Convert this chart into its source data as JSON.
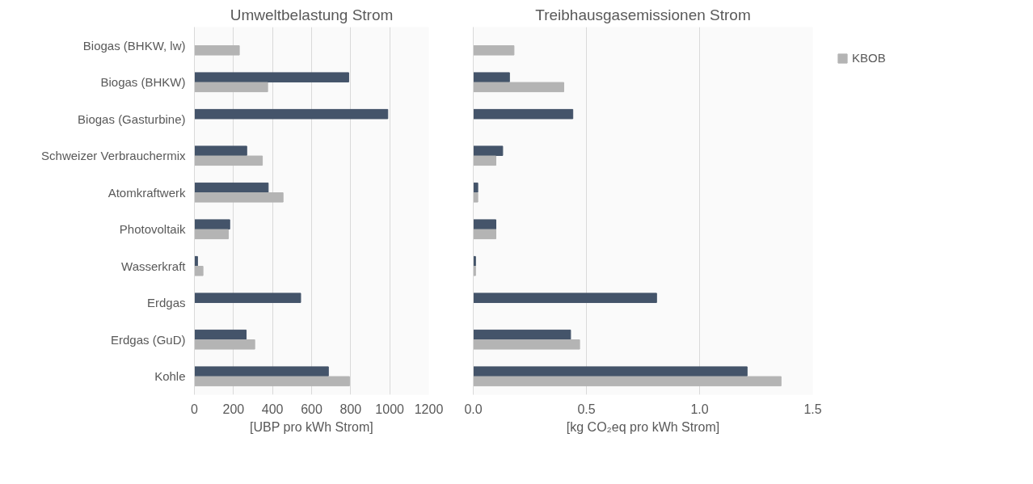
{
  "chart_data": [
    {
      "type": "bar",
      "orientation": "horizontal",
      "title": "Umweltbelastung Strom",
      "xlabel": "[UBP pro kWh Strom]",
      "categories": [
        "Biogas (BHKW, lw)",
        "Biogas (BHKW)",
        "Biogas (Gasturbine)",
        "Schweizer Verbrauchermix",
        "Atomkraftwerk",
        "Photovoltaik",
        "Wasserkraft",
        "Erdgas",
        "Erdgas (GuD)",
        "Kohle"
      ],
      "series": [
        {
          "color": "#44546a",
          "values": [
            null,
            790,
            990,
            268,
            378,
            181,
            16,
            544,
            265,
            686
          ]
        },
        {
          "color": "#b4b4b4",
          "values": [
            230,
            375,
            null,
            348,
            454,
            174,
            44,
            null,
            309,
            794
          ]
        }
      ],
      "xlim": [
        0,
        1200
      ],
      "xticks": [
        0,
        200,
        400,
        600,
        800,
        1000,
        1200
      ],
      "grid": "x"
    },
    {
      "type": "bar",
      "orientation": "horizontal",
      "title": "Treibhausgasemissionen Strom",
      "xlabel": "[kg CO₂eq pro kWh Strom]",
      "categories": [
        null,
        null,
        null,
        null,
        null,
        null,
        null,
        null,
        null,
        null
      ],
      "series": [
        {
          "color": "#44546a",
          "values": [
            null,
            0.16,
            0.44,
            0.13,
            0.02,
            0.1,
            0.01,
            0.81,
            0.43,
            1.21
          ]
        },
        {
          "name": "KBOB",
          "color": "#b4b4b4",
          "values": [
            0.18,
            0.4,
            null,
            0.1,
            0.02,
            0.1,
            0.01,
            null,
            0.47,
            1.36
          ]
        }
      ],
      "xlim": [
        0,
        1.5
      ],
      "xticks": [
        {
          "value": 0,
          "label": "0.0"
        },
        {
          "value": 0.5,
          "label": "0.5"
        },
        {
          "value": 1,
          "label": "1.0"
        },
        {
          "value": 1.5,
          "label": "1.5"
        }
      ],
      "grid": "x",
      "legend": "right"
    }
  ]
}
